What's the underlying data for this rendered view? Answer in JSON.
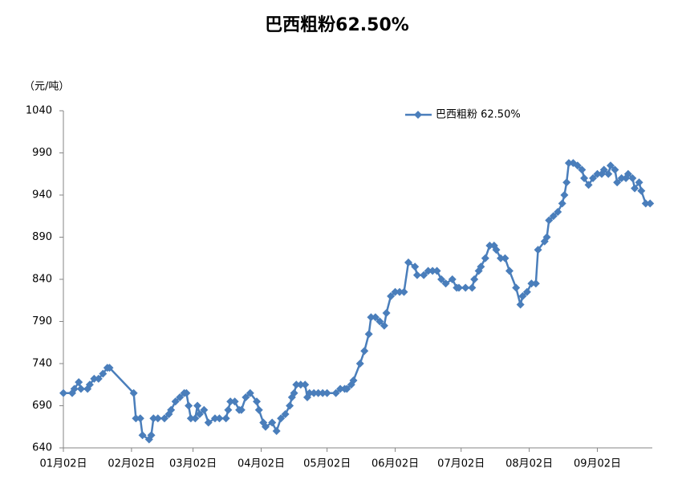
{
  "chart_data": {
    "type": "line",
    "title": "巴西粗粉62.50%",
    "y_label": "（元/吨）",
    "x": [
      0,
      4,
      5,
      7,
      8,
      11,
      12,
      14,
      16,
      18,
      20,
      21,
      32,
      33,
      35,
      36,
      39,
      40,
      41,
      43,
      46,
      48,
      49,
      51,
      53,
      55,
      56,
      57,
      58,
      60,
      61,
      62,
      64,
      66,
      69,
      71,
      74,
      75,
      76,
      78,
      80,
      81,
      83,
      85,
      88,
      89,
      91,
      92,
      95,
      97,
      99,
      101,
      103,
      104,
      105,
      106,
      108,
      110,
      111,
      112,
      114,
      116,
      118,
      120,
      124,
      126,
      128,
      129,
      131,
      132,
      135,
      137,
      139,
      140,
      142,
      144,
      146,
      147,
      149,
      151,
      153,
      155,
      157,
      160,
      161,
      164,
      166,
      168,
      170,
      172,
      174,
      177,
      179,
      180,
      183,
      186,
      187,
      189,
      190,
      192,
      194,
      196,
      197,
      199,
      201,
      203,
      206,
      208,
      209,
      211,
      213,
      215,
      216,
      219,
      220,
      221,
      223,
      225,
      227,
      228,
      229,
      230,
      232,
      234,
      236,
      237,
      239,
      241,
      243,
      245,
      246,
      248,
      249,
      251,
      252,
      254,
      256,
      257,
      259,
      260,
      262,
      263,
      265,
      267
    ],
    "series": [
      {
        "name": "巴西粗粉 62.50%",
        "color": "#4a7ebb",
        "values": [
          705,
          705,
          710,
          718,
          710,
          710,
          715,
          722,
          722,
          728,
          735,
          735,
          705,
          675,
          675,
          655,
          650,
          655,
          675,
          675,
          675,
          680,
          685,
          695,
          700,
          705,
          705,
          690,
          675,
          675,
          690,
          680,
          685,
          670,
          675,
          675,
          675,
          685,
          695,
          695,
          685,
          685,
          700,
          705,
          695,
          685,
          670,
          665,
          670,
          660,
          675,
          680,
          690,
          700,
          705,
          715,
          715,
          715,
          700,
          705,
          705,
          705,
          705,
          705,
          705,
          710,
          710,
          710,
          715,
          720,
          740,
          755,
          775,
          795,
          795,
          790,
          785,
          800,
          820,
          825,
          825,
          825,
          860,
          855,
          845,
          845,
          850,
          850,
          850,
          840,
          835,
          840,
          830,
          830,
          830,
          830,
          840,
          850,
          855,
          865,
          880,
          880,
          875,
          865,
          865,
          850,
          830,
          810,
          820,
          825,
          835,
          835,
          875,
          885,
          890,
          910,
          915,
          920,
          930,
          940,
          955,
          978,
          978,
          975,
          970,
          960,
          952,
          960,
          965,
          965,
          970,
          965,
          975,
          970,
          955,
          960,
          960,
          965,
          960,
          948,
          955,
          945,
          930,
          930
        ]
      }
    ],
    "xlim": [
      0,
      268
    ],
    "xticks": [
      {
        "value": 0,
        "label": "01月02日"
      },
      {
        "value": 31,
        "label": "02月02日"
      },
      {
        "value": 59,
        "label": "03月02日"
      },
      {
        "value": 90,
        "label": "04月02日"
      },
      {
        "value": 120,
        "label": "05月02日"
      },
      {
        "value": 151,
        "label": "06月02日"
      },
      {
        "value": 181,
        "label": "07月02日"
      },
      {
        "value": 212,
        "label": "08月02日"
      },
      {
        "value": 243,
        "label": "09月02日"
      }
    ],
    "ylim": [
      640,
      1040
    ],
    "yticks": [
      640,
      690,
      740,
      790,
      840,
      890,
      940,
      990,
      1040
    ],
    "grid": false,
    "legend": "top-right"
  }
}
